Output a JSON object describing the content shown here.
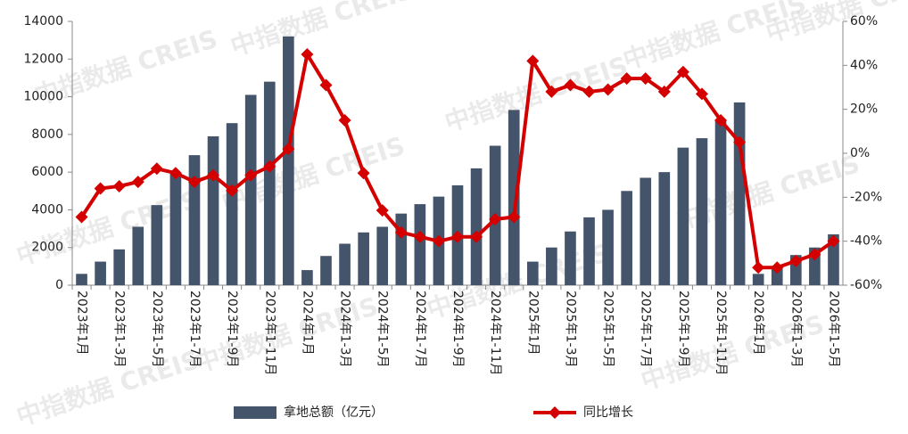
{
  "chart_data": {
    "type": "bar_line",
    "watermark": "中指数据 CREIS",
    "categories": [
      "2023年1月",
      null,
      "2023年1-3月",
      null,
      "2023年1-5月",
      null,
      "2023年1-7月",
      null,
      "2023年1-9月",
      null,
      "2023年1-11月",
      null,
      "2024年1月",
      null,
      "2024年1-3月",
      null,
      "2024年1-5月",
      null,
      "2024年1-7月",
      null,
      "2024年1-9月",
      null,
      "2024年1-11月",
      null,
      "2025年1月",
      null,
      "2025年1-3月",
      null,
      "2025年1-5月",
      null,
      "2025年1-7月",
      null,
      "2025年1-9月",
      null,
      "2025年1-11月",
      null,
      "2026年1月",
      null,
      "2026年1-3月",
      null,
      "2026年1-5月"
    ],
    "series": [
      {
        "name": "拿地总额（亿元）",
        "type": "bar",
        "color": "#44546a",
        "values": [
          600,
          1250,
          1900,
          3100,
          4250,
          5900,
          6900,
          7900,
          8600,
          10100,
          10800,
          13200,
          800,
          1550,
          2200,
          2800,
          3100,
          3800,
          4300,
          4700,
          5300,
          6200,
          7400,
          9300,
          1250,
          2000,
          2850,
          3600,
          4000,
          5000,
          5700,
          6000,
          7300,
          7800,
          8700,
          9700,
          600,
          1000,
          1600,
          2000,
          2700
        ]
      },
      {
        "name": "同比增长",
        "type": "line",
        "axis": "y2",
        "color": "#d40000",
        "values": [
          -29,
          -16,
          -15,
          -13,
          -7,
          -9,
          -13,
          -10,
          -17,
          -10,
          -6,
          2,
          45,
          31,
          15,
          -9,
          -26,
          -36,
          -38,
          -40,
          -38,
          -38,
          -30,
          -29,
          42,
          28,
          31,
          28,
          29,
          34,
          34,
          28,
          37,
          27,
          15,
          5,
          -52,
          -52,
          -49,
          -46,
          -40
        ]
      }
    ],
    "ylim": [
      0,
      14000
    ],
    "yticks": [
      0,
      2000,
      4000,
      6000,
      8000,
      10000,
      12000,
      14000
    ],
    "y2lim": [
      -60,
      60
    ],
    "y2ticks": [
      {
        "value": -60,
        "label": "-60%"
      },
      {
        "value": -40,
        "label": "-40%"
      },
      {
        "value": -20,
        "label": "-20%"
      },
      {
        "value": 0,
        "label": "0%"
      },
      {
        "value": 20,
        "label": "20%"
      },
      {
        "value": 40,
        "label": "40%"
      },
      {
        "value": 60,
        "label": "60%"
      }
    ],
    "legend": "bottom"
  }
}
